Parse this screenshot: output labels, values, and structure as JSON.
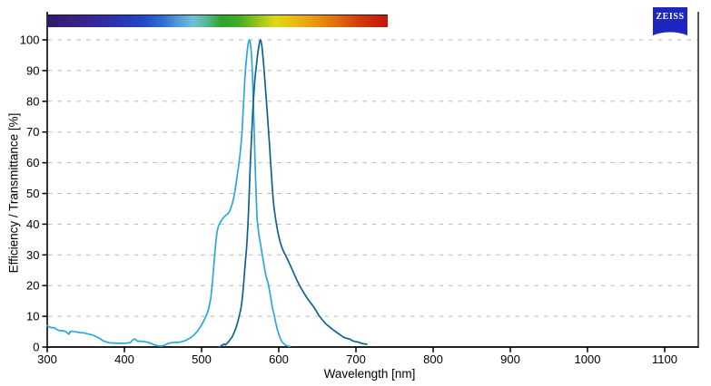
{
  "branding": {
    "logo_text": "ZEISS",
    "logo_color": "#1e26c0"
  },
  "chart_data": {
    "type": "line",
    "title": "",
    "xlabel": "Wavelength [nm]",
    "ylabel": "Efficiency / Transmittance [%]",
    "xlim": [
      300,
      1143
    ],
    "ylim": [
      0,
      100
    ],
    "x_ticks": [
      300,
      400,
      500,
      600,
      700,
      800,
      900,
      1000,
      1100
    ],
    "y_ticks": [
      0,
      10,
      20,
      30,
      40,
      50,
      60,
      70,
      80,
      90,
      100
    ],
    "grid": "horizontal-dashed",
    "grid_color": "#b9b9b9",
    "legend_position": "none",
    "spectrum_bar": {
      "range_nm": [
        300,
        741
      ],
      "stops": [
        {
          "pos": 0,
          "color": "#31196e"
        },
        {
          "pos": 7,
          "color": "#3a2080"
        },
        {
          "pos": 14,
          "color": "#35279a"
        },
        {
          "pos": 21,
          "color": "#2b35b4"
        },
        {
          "pos": 28,
          "color": "#2346c6"
        },
        {
          "pos": 34,
          "color": "#2f6fd0"
        },
        {
          "pos": 39,
          "color": "#55a0d8"
        },
        {
          "pos": 43,
          "color": "#6fc0d8"
        },
        {
          "pos": 47,
          "color": "#57b78f"
        },
        {
          "pos": 51,
          "color": "#2fa42e"
        },
        {
          "pos": 56,
          "color": "#3eac24"
        },
        {
          "pos": 60,
          "color": "#7abc1a"
        },
        {
          "pos": 64,
          "color": "#b5cf15"
        },
        {
          "pos": 67,
          "color": "#dcd813"
        },
        {
          "pos": 71,
          "color": "#e9c40f"
        },
        {
          "pos": 76,
          "color": "#e9a90d"
        },
        {
          "pos": 81,
          "color": "#e68a0c"
        },
        {
          "pos": 86,
          "color": "#df650d"
        },
        {
          "pos": 91,
          "color": "#d4400c"
        },
        {
          "pos": 96,
          "color": "#ca250b"
        },
        {
          "pos": 100,
          "color": "#c3170b"
        }
      ]
    },
    "series": [
      {
        "name": "light-blue-curve",
        "color": "#29a8df",
        "points": [
          [
            300,
            7.0
          ],
          [
            302,
            6.6
          ],
          [
            305,
            6.3
          ],
          [
            309,
            6.3
          ],
          [
            312,
            5.8
          ],
          [
            315,
            5.4
          ],
          [
            319,
            5.3
          ],
          [
            323,
            5.2
          ],
          [
            326,
            4.6
          ],
          [
            328,
            4.2
          ],
          [
            330,
            5.1
          ],
          [
            334,
            5.1
          ],
          [
            338,
            4.9
          ],
          [
            343,
            4.7
          ],
          [
            348,
            4.6
          ],
          [
            352,
            4.3
          ],
          [
            356,
            4.1
          ],
          [
            360,
            3.8
          ],
          [
            364,
            3.3
          ],
          [
            368,
            2.8
          ],
          [
            372,
            2.1
          ],
          [
            376,
            1.7
          ],
          [
            380,
            1.4
          ],
          [
            386,
            1.3
          ],
          [
            392,
            1.2
          ],
          [
            398,
            1.2
          ],
          [
            404,
            1.3
          ],
          [
            408,
            1.5
          ],
          [
            411,
            2.4
          ],
          [
            414,
            2.6
          ],
          [
            417,
            1.9
          ],
          [
            422,
            1.9
          ],
          [
            427,
            1.7
          ],
          [
            431,
            1.5
          ],
          [
            435,
            1.1
          ],
          [
            439,
            0.7
          ],
          [
            443,
            0.4
          ],
          [
            448,
            0.3
          ],
          [
            452,
            0.6
          ],
          [
            456,
            1.1
          ],
          [
            460,
            1.4
          ],
          [
            465,
            1.5
          ],
          [
            470,
            1.5
          ],
          [
            474,
            1.7
          ],
          [
            478,
            2.0
          ],
          [
            482,
            2.5
          ],
          [
            486,
            3.1
          ],
          [
            490,
            3.9
          ],
          [
            494,
            5.0
          ],
          [
            497,
            6.0
          ],
          [
            500,
            7.2
          ],
          [
            503,
            8.6
          ],
          [
            506,
            10.2
          ],
          [
            509,
            12.3
          ],
          [
            512,
            16.0
          ],
          [
            514,
            21.0
          ],
          [
            516,
            27.0
          ],
          [
            518,
            33.0
          ],
          [
            520,
            37.5
          ],
          [
            522,
            39.5
          ],
          [
            525,
            41.0
          ],
          [
            528,
            42.0
          ],
          [
            531,
            42.8
          ],
          [
            534,
            43.4
          ],
          [
            536,
            44.1
          ],
          [
            538,
            45.3
          ],
          [
            540,
            46.9
          ],
          [
            542,
            49.0
          ],
          [
            544,
            52.0
          ],
          [
            546,
            55.5
          ],
          [
            548,
            59.0
          ],
          [
            550,
            63.0
          ],
          [
            552,
            68.5
          ],
          [
            553,
            72.5
          ],
          [
            554,
            77.5
          ],
          [
            555,
            82.5
          ],
          [
            556,
            87.0
          ],
          [
            557,
            90.5
          ],
          [
            558,
            93.5
          ],
          [
            559,
            96.0
          ],
          [
            560,
            98.2
          ],
          [
            561,
            99.6
          ],
          [
            562,
            100.0
          ],
          [
            563,
            99.3
          ],
          [
            564,
            97.2
          ],
          [
            565,
            93.5
          ],
          [
            566,
            88.0
          ],
          [
            567,
            80.5
          ],
          [
            568,
            72.0
          ],
          [
            569,
            63.0
          ],
          [
            570,
            54.5
          ],
          [
            571,
            47.0
          ],
          [
            572,
            41.5
          ],
          [
            574,
            37.0
          ],
          [
            576,
            34.0
          ],
          [
            578,
            31.0
          ],
          [
            580,
            28.0
          ],
          [
            582,
            25.0
          ],
          [
            584,
            22.5
          ],
          [
            586,
            21.0
          ],
          [
            588,
            18.5
          ],
          [
            590,
            15.5
          ],
          [
            592,
            12.5
          ],
          [
            594,
            10.5
          ],
          [
            596,
            8.0
          ],
          [
            598,
            5.8
          ],
          [
            600,
            4.2
          ],
          [
            602,
            2.9
          ],
          [
            604,
            1.8
          ],
          [
            606,
            1.2
          ],
          [
            609,
            0.6
          ],
          [
            612,
            0.3
          ],
          [
            614,
            0.2
          ]
        ]
      },
      {
        "name": "dark-blue-curve",
        "color": "#0e6292",
        "points": [
          [
            523,
            0.1
          ],
          [
            525,
            0.3
          ],
          [
            527,
            0.6
          ],
          [
            529,
            1.0
          ],
          [
            531,
            0.7
          ],
          [
            533,
            1.2
          ],
          [
            535,
            1.8
          ],
          [
            537,
            2.4
          ],
          [
            539,
            3.1
          ],
          [
            541,
            4.1
          ],
          [
            543,
            5.2
          ],
          [
            545,
            6.6
          ],
          [
            547,
            8.3
          ],
          [
            549,
            10.3
          ],
          [
            551,
            12.7
          ],
          [
            552,
            14.3
          ],
          [
            553,
            16.3
          ],
          [
            554,
            19.2
          ],
          [
            555,
            22.4
          ],
          [
            556,
            25.5
          ],
          [
            557,
            28.4
          ],
          [
            558,
            31.3
          ],
          [
            559,
            34.8
          ],
          [
            560,
            39.5
          ],
          [
            561,
            45.5
          ],
          [
            562,
            52.0
          ],
          [
            563,
            58.5
          ],
          [
            564,
            64.5
          ],
          [
            565,
            70.0
          ],
          [
            566,
            75.0
          ],
          [
            567,
            79.5
          ],
          [
            568,
            83.5
          ],
          [
            569,
            86.8
          ],
          [
            570,
            89.5
          ],
          [
            571,
            91.8
          ],
          [
            572,
            93.8
          ],
          [
            573,
            95.8
          ],
          [
            574,
            97.6
          ],
          [
            575,
            99.2
          ],
          [
            576,
            100.0
          ],
          [
            577,
            99.6
          ],
          [
            578,
            98.2
          ],
          [
            579,
            96.0
          ],
          [
            580,
            93.2
          ],
          [
            581,
            90.0
          ],
          [
            582,
            86.8
          ],
          [
            583,
            83.5
          ],
          [
            584,
            80.0
          ],
          [
            585,
            76.5
          ],
          [
            586,
            73.0
          ],
          [
            587,
            69.5
          ],
          [
            588,
            66.0
          ],
          [
            589,
            62.0
          ],
          [
            590,
            58.0
          ],
          [
            591,
            54.0
          ],
          [
            592,
            50.5
          ],
          [
            593,
            47.5
          ],
          [
            594,
            45.0
          ],
          [
            596,
            41.5
          ],
          [
            598,
            38.5
          ],
          [
            600,
            36.0
          ],
          [
            602,
            34.0
          ],
          [
            604,
            32.5
          ],
          [
            606,
            31.2
          ],
          [
            609,
            29.8
          ],
          [
            612,
            28.2
          ],
          [
            615,
            26.5
          ],
          [
            618,
            24.9
          ],
          [
            621,
            23.2
          ],
          [
            624,
            21.5
          ],
          [
            627,
            20.0
          ],
          [
            630,
            18.7
          ],
          [
            633,
            17.4
          ],
          [
            636,
            16.2
          ],
          [
            640,
            14.8
          ],
          [
            644,
            13.5
          ],
          [
            648,
            12.0
          ],
          [
            652,
            10.3
          ],
          [
            656,
            9.0
          ],
          [
            660,
            7.8
          ],
          [
            664,
            6.9
          ],
          [
            668,
            6.1
          ],
          [
            672,
            5.3
          ],
          [
            676,
            4.6
          ],
          [
            680,
            3.9
          ],
          [
            684,
            3.2
          ],
          [
            688,
            2.8
          ],
          [
            692,
            2.6
          ],
          [
            695,
            2.1
          ],
          [
            699,
            1.8
          ],
          [
            703,
            1.6
          ],
          [
            706,
            1.3
          ],
          [
            709,
            1.1
          ],
          [
            712,
            1.0
          ],
          [
            714,
            0.9
          ]
        ]
      }
    ]
  }
}
